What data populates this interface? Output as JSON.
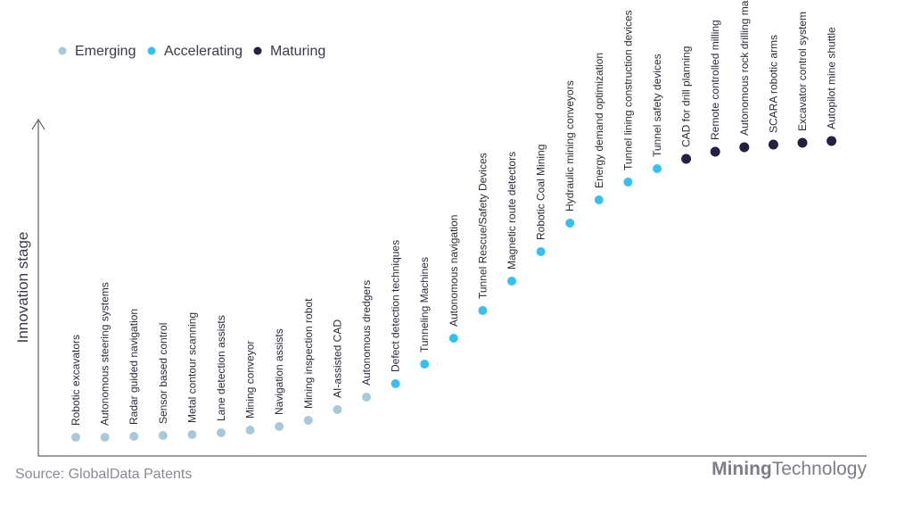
{
  "colors": {
    "Emerging": "#a9c8da",
    "Accelerating": "#35c0f3",
    "Maturing": "#271f43",
    "axis": "#3a3a3a"
  },
  "footer": {
    "source": "Source: GlobalData Patents",
    "brand_bold": "Mining",
    "brand_light": "Technology"
  },
  "chart_data": {
    "type": "scatter",
    "ylabel": "Innovation stage",
    "legend_placement": "top-left",
    "legend": [
      "Emerging",
      "Accelerating",
      "Maturing"
    ],
    "points": [
      {
        "label": "Robotic excavators",
        "stage": "Emerging",
        "y": 0.8
      },
      {
        "label": "Autonomous steering systems",
        "stage": "Emerging",
        "y": 0.8
      },
      {
        "label": "Radar guided navigation",
        "stage": "Emerging",
        "y": 0.9
      },
      {
        "label": "Sensor based control",
        "stage": "Emerging",
        "y": 1.0
      },
      {
        "label": "Metal contour scanning",
        "stage": "Emerging",
        "y": 1.1
      },
      {
        "label": "Lane detection assists",
        "stage": "Emerging",
        "y": 1.3
      },
      {
        "label": "Mining conveyor",
        "stage": "Emerging",
        "y": 1.6
      },
      {
        "label": "Navigation assists",
        "stage": "Emerging",
        "y": 2.0
      },
      {
        "label": "Mining inspection robot",
        "stage": "Emerging",
        "y": 2.7
      },
      {
        "label": "AI-assisted CAD",
        "stage": "Emerging",
        "y": 3.9
      },
      {
        "label": "Autonomous dredgers",
        "stage": "Emerging",
        "y": 5.3
      },
      {
        "label": "Defect detection techniques",
        "stage": "Accelerating",
        "y": 6.8
      },
      {
        "label": "Tunneling Machines",
        "stage": "Accelerating",
        "y": 9.0
      },
      {
        "label": "Autonomous navigation",
        "stage": "Accelerating",
        "y": 11.9
      },
      {
        "label": "Tunnel Rescue/Safety Devices",
        "stage": "Accelerating",
        "y": 15.0
      },
      {
        "label": "Magnetic route detectors",
        "stage": "Accelerating",
        "y": 18.3
      },
      {
        "label": "Robotic Coal Mining",
        "stage": "Accelerating",
        "y": 21.6
      },
      {
        "label": "Hydraulic mining conveyors",
        "stage": "Accelerating",
        "y": 24.8
      },
      {
        "label": "Energy demand optimization",
        "stage": "Accelerating",
        "y": 27.4
      },
      {
        "label": "Tunnel lining construction devices",
        "stage": "Accelerating",
        "y": 29.4
      },
      {
        "label": "Tunnel safety devices",
        "stage": "Accelerating",
        "y": 30.9
      },
      {
        "label": "CAD for drill planning",
        "stage": "Maturing",
        "y": 32.0
      },
      {
        "label": "Remote controlled milling",
        "stage": "Maturing",
        "y": 32.8
      },
      {
        "label": "Autonomous rock drilling machines",
        "stage": "Maturing",
        "y": 33.3
      },
      {
        "label": "SCARA robotic arms",
        "stage": "Maturing",
        "y": 33.6
      },
      {
        "label": "Excavator control system",
        "stage": "Maturing",
        "y": 33.8
      },
      {
        "label": "Autopilot mine shuttle",
        "stage": "Maturing",
        "y": 34.0
      }
    ]
  }
}
